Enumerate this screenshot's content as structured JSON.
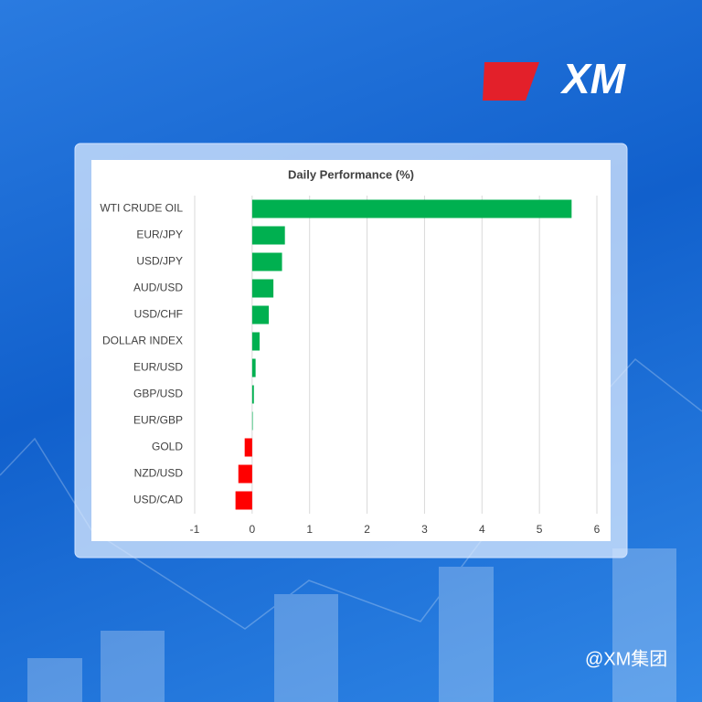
{
  "logo": "XM",
  "watermark": "@XM集团",
  "chart_data": {
    "type": "hbar",
    "title": "Daily Performance (%)",
    "categories": [
      "WTI CRUDE OIL",
      "EUR/JPY",
      "USD/JPY",
      "AUD/USD",
      "USD/CHF",
      "DOLLAR INDEX",
      "EUR/USD",
      "GBP/USD",
      "EUR/GBP",
      "GOLD",
      "NZD/USD",
      "USD/CAD"
    ],
    "values": [
      5.56,
      0.57,
      0.52,
      0.37,
      0.29,
      0.13,
      0.06,
      0.03,
      0.01,
      -0.13,
      -0.24,
      -0.29
    ],
    "positive_color": "#00b050",
    "negative_color": "#ff0000",
    "xlim": [
      -1,
      6
    ],
    "xticks": [
      -1,
      0,
      1,
      2,
      3,
      4,
      5,
      6
    ],
    "grid": true
  }
}
